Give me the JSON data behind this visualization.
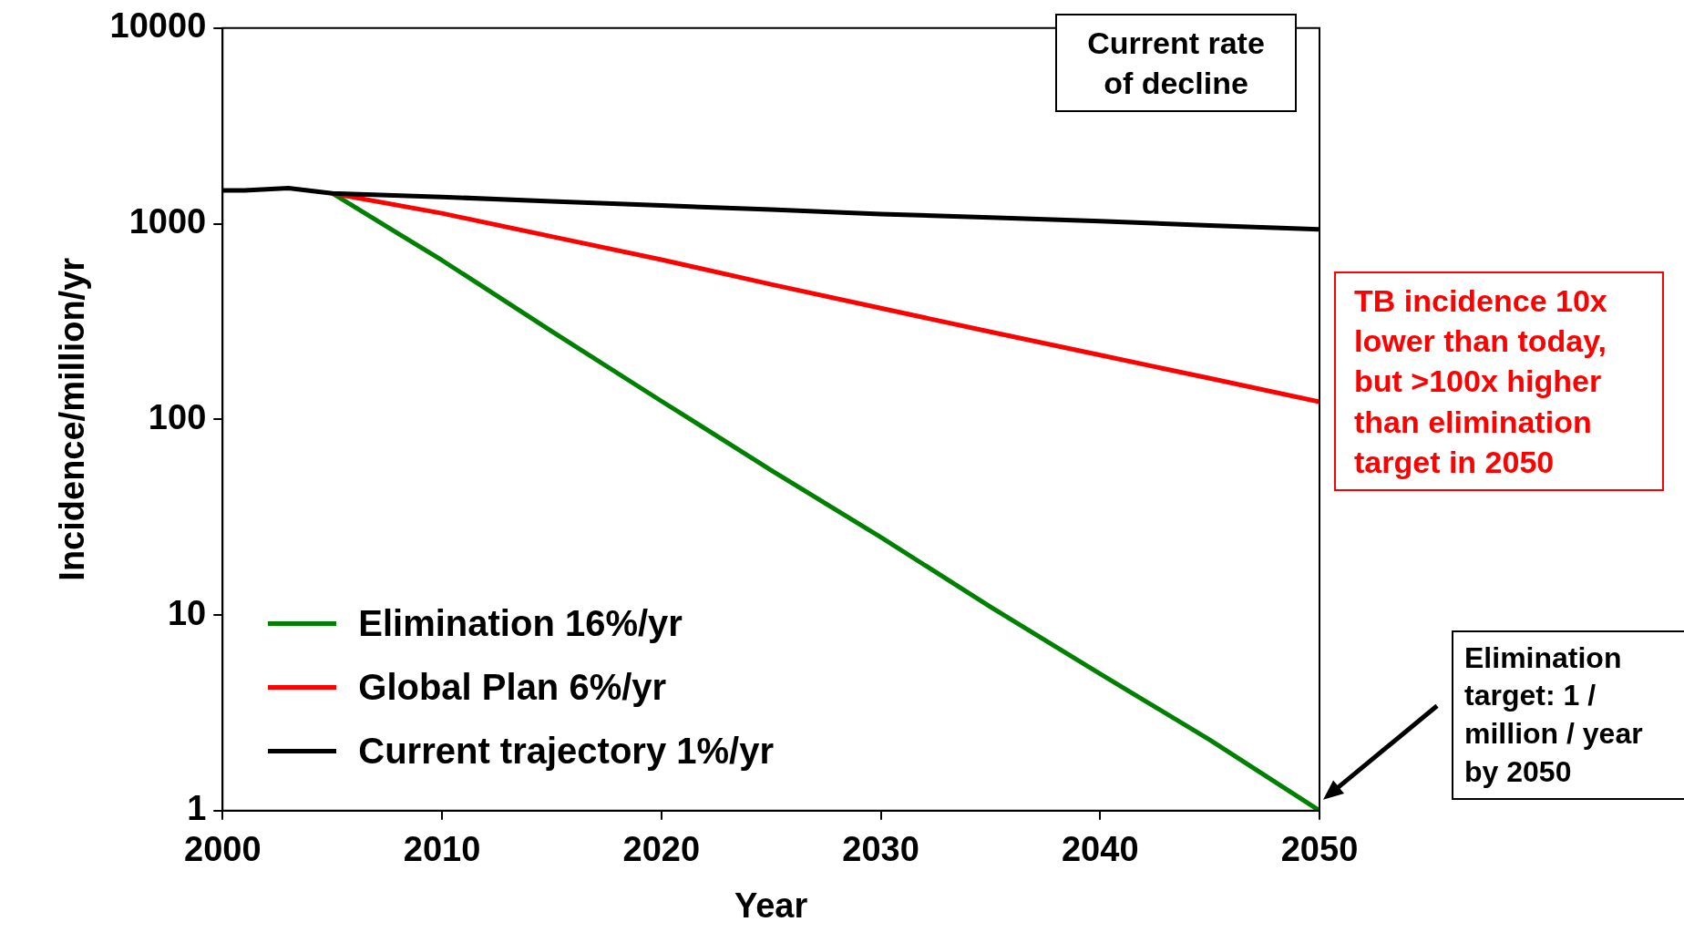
{
  "chart_data": {
    "type": "line",
    "xlabel": "Year",
    "ylabel": "Incidence/million/yr",
    "x": [
      2000,
      2001,
      2003,
      2005,
      2010,
      2015,
      2020,
      2025,
      2030,
      2035,
      2040,
      2045,
      2050
    ],
    "series": [
      {
        "name": "Elimination 16%/yr",
        "color": "#008000",
        "x": [
          2005,
          2010,
          2015,
          2020,
          2025,
          2030,
          2035,
          2040,
          2045,
          2050
        ],
        "values": [
          1430,
          650,
          282,
          124,
          55,
          25,
          11,
          5,
          2.3,
          1
        ]
      },
      {
        "name": "Global Plan 6%/yr",
        "color": "#ff0000",
        "x": [
          2005,
          2010,
          2015,
          2020,
          2025,
          2030,
          2035,
          2040,
          2045,
          2050
        ],
        "values": [
          1430,
          1130,
          860,
          655,
          490,
          370,
          280,
          213,
          162,
          123
        ]
      },
      {
        "name": "Current trajectory 1%/yr",
        "color": "#000000",
        "values": [
          1480,
          1480,
          1520,
          1430,
          1370,
          1300,
          1240,
          1180,
          1120,
          1075,
          1030,
          980,
          935
        ]
      }
    ],
    "log": true,
    "xlim": [
      2000,
      2050
    ],
    "xticks": [
      2000,
      2010,
      2020,
      2030,
      2040,
      2050
    ],
    "ylim": [
      1,
      10000
    ],
    "yticks": [
      1,
      10,
      100,
      1000,
      10000
    ],
    "grid": false,
    "legend": "bottom left",
    "marker": "none",
    "line_style": "solid",
    "annotations": [
      "Current rate of decline",
      "TB incidence 10x lower than today, but >100x higher than elimination target in 2050",
      "Elimination target: 1 / million / year by 2050"
    ]
  }
}
